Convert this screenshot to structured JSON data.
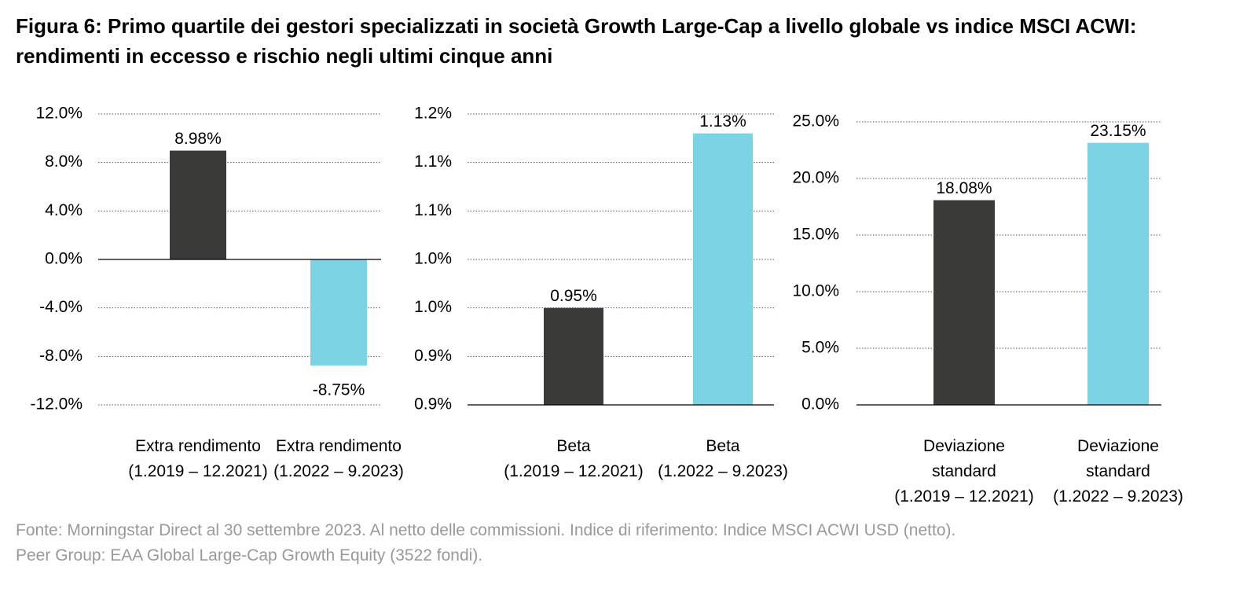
{
  "title": "Figura 6: Primo quartile dei gestori specializzati in società Growth Large-Cap a livello globale vs indice MSCI ACWI: rendimenti in eccesso e rischio negli ultimi cinque anni",
  "notes": [
    "Fonte: Morningstar Direct al 30 settembre 2023. Al netto delle commissioni. Indice di riferimento: Indice MSCI ACWI USD (netto).",
    "Peer Group: EAA Global Large-Cap Growth Equity (3522 fondi)."
  ],
  "chart_data": [
    {
      "type": "bar",
      "categories": [
        "Extra rendimento\n(1.2019 – 12.2021)",
        "Extra rendimento\n(1.2022 – 9.2023)"
      ],
      "values": [
        8.98,
        -8.75
      ],
      "value_labels": [
        "8.98%",
        "-8.75%"
      ],
      "colors": [
        "#3a3b39",
        "#7dd3e6"
      ],
      "ylim": [
        -12,
        12
      ],
      "yticks": [
        {
          "value": -12,
          "label": "-12.0%"
        },
        {
          "value": -8,
          "label": "-8.0%"
        },
        {
          "value": -4,
          "label": "-4.0%"
        },
        {
          "value": 0,
          "label": "0.0%"
        },
        {
          "value": 4,
          "label": "4.0%"
        },
        {
          "value": 8,
          "label": "8.0%"
        },
        {
          "value": 12,
          "label": "12.0%"
        }
      ],
      "grid": true
    },
    {
      "type": "bar",
      "categories": [
        "Beta\n(1.2019 – 12.2021)",
        "Beta\n(1.2022 – 9.2023)"
      ],
      "values": [
        0.95,
        1.13
      ],
      "value_labels": [
        "0.95%",
        "1.13%"
      ],
      "colors": [
        "#3a3b39",
        "#7dd3e6"
      ],
      "ylim": [
        0.85,
        1.15
      ],
      "yticks": [
        {
          "value": 0.85,
          "label": "0.9%"
        },
        {
          "value": 0.9,
          "label": "0.9%"
        },
        {
          "value": 0.95,
          "label": "1.0%"
        },
        {
          "value": 1.0,
          "label": "1.0%"
        },
        {
          "value": 1.05,
          "label": "1.1%"
        },
        {
          "value": 1.1,
          "label": "1.1%"
        },
        {
          "value": 1.15,
          "label": "1.2%"
        }
      ],
      "grid": true
    },
    {
      "type": "bar",
      "categories": [
        "Deviazione\nstandard\n(1.2019 – 12.2021)",
        "Deviazione\nstandard\n(1.2022 – 9.2023)"
      ],
      "values": [
        18.08,
        23.15
      ],
      "value_labels": [
        "18.08%",
        "23.15%"
      ],
      "colors": [
        "#3a3b39",
        "#7dd3e6"
      ],
      "ylim": [
        0,
        25
      ],
      "yticks": [
        {
          "value": 0,
          "label": "0.0%"
        },
        {
          "value": 5,
          "label": "5.0%"
        },
        {
          "value": 10,
          "label": "10.0%"
        },
        {
          "value": 15,
          "label": "15.0%"
        },
        {
          "value": 20,
          "label": "20.0%"
        },
        {
          "value": 25,
          "label": "25.0%"
        }
      ],
      "grid": true
    }
  ]
}
